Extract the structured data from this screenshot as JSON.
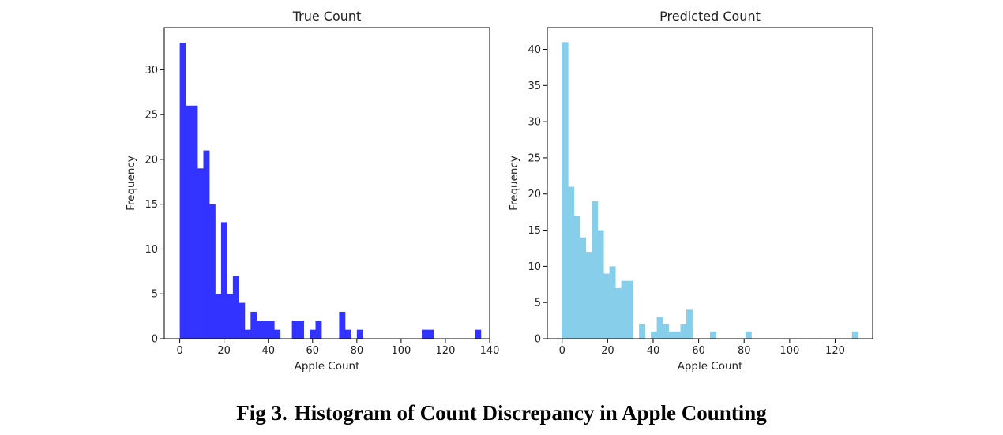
{
  "chart_data": [
    {
      "type": "bar",
      "title": "True Count",
      "xlabel": "Apple Count",
      "ylabel": "Frequency",
      "color": "#3333ff",
      "xlim": [
        -7,
        140
      ],
      "ylim": [
        0,
        34.7
      ],
      "xticks": [
        0,
        20,
        40,
        60,
        80,
        100,
        120,
        140
      ],
      "yticks": [
        0,
        5,
        10,
        15,
        20,
        25,
        30
      ],
      "bin_width": 2.67,
      "bins": [
        {
          "x": 0,
          "value": 33
        },
        {
          "x": 2.67,
          "value": 26
        },
        {
          "x": 5.33,
          "value": 26
        },
        {
          "x": 8,
          "value": 19
        },
        {
          "x": 10.67,
          "value": 21
        },
        {
          "x": 13.33,
          "value": 15
        },
        {
          "x": 16,
          "value": 5
        },
        {
          "x": 18.67,
          "value": 13
        },
        {
          "x": 21.33,
          "value": 5
        },
        {
          "x": 24,
          "value": 7
        },
        {
          "x": 26.67,
          "value": 4
        },
        {
          "x": 29.33,
          "value": 1
        },
        {
          "x": 32,
          "value": 3
        },
        {
          "x": 34.67,
          "value": 2
        },
        {
          "x": 37.33,
          "value": 2
        },
        {
          "x": 40,
          "value": 2
        },
        {
          "x": 42.67,
          "value": 1
        },
        {
          "x": 50.67,
          "value": 2
        },
        {
          "x": 53.33,
          "value": 2
        },
        {
          "x": 58.67,
          "value": 1
        },
        {
          "x": 61.33,
          "value": 2
        },
        {
          "x": 72,
          "value": 3
        },
        {
          "x": 74.67,
          "value": 1
        },
        {
          "x": 80,
          "value": 1
        },
        {
          "x": 109.33,
          "value": 1
        },
        {
          "x": 112,
          "value": 1
        },
        {
          "x": 133.33,
          "value": 1
        }
      ]
    },
    {
      "type": "bar",
      "title": "Predicted Count",
      "xlabel": "Apple Count",
      "ylabel": "Frequency",
      "color": "#87ceeb",
      "xlim": [
        -6.5,
        136.5
      ],
      "ylim": [
        0,
        43
      ],
      "xticks": [
        0,
        20,
        40,
        60,
        80,
        100,
        120
      ],
      "yticks": [
        0,
        5,
        10,
        15,
        20,
        25,
        30,
        35,
        40
      ],
      "bin_width": 2.6,
      "bins": [
        {
          "x": 0,
          "value": 41
        },
        {
          "x": 2.6,
          "value": 21
        },
        {
          "x": 5.2,
          "value": 17
        },
        {
          "x": 7.8,
          "value": 14
        },
        {
          "x": 10.4,
          "value": 12
        },
        {
          "x": 13,
          "value": 19
        },
        {
          "x": 15.6,
          "value": 15
        },
        {
          "x": 18.2,
          "value": 9
        },
        {
          "x": 20.8,
          "value": 10
        },
        {
          "x": 23.4,
          "value": 7
        },
        {
          "x": 26,
          "value": 8
        },
        {
          "x": 28.6,
          "value": 8
        },
        {
          "x": 33.8,
          "value": 2
        },
        {
          "x": 39,
          "value": 1
        },
        {
          "x": 41.6,
          "value": 3
        },
        {
          "x": 44.2,
          "value": 2
        },
        {
          "x": 46.8,
          "value": 1
        },
        {
          "x": 49.4,
          "value": 1
        },
        {
          "x": 52,
          "value": 2
        },
        {
          "x": 54.6,
          "value": 4
        },
        {
          "x": 65,
          "value": 1
        },
        {
          "x": 80.6,
          "value": 1
        },
        {
          "x": 127.4,
          "value": 1
        }
      ]
    }
  ],
  "caption": {
    "label": "Fig 3.",
    "text": "Histogram of Count Discrepancy in Apple Counting"
  }
}
